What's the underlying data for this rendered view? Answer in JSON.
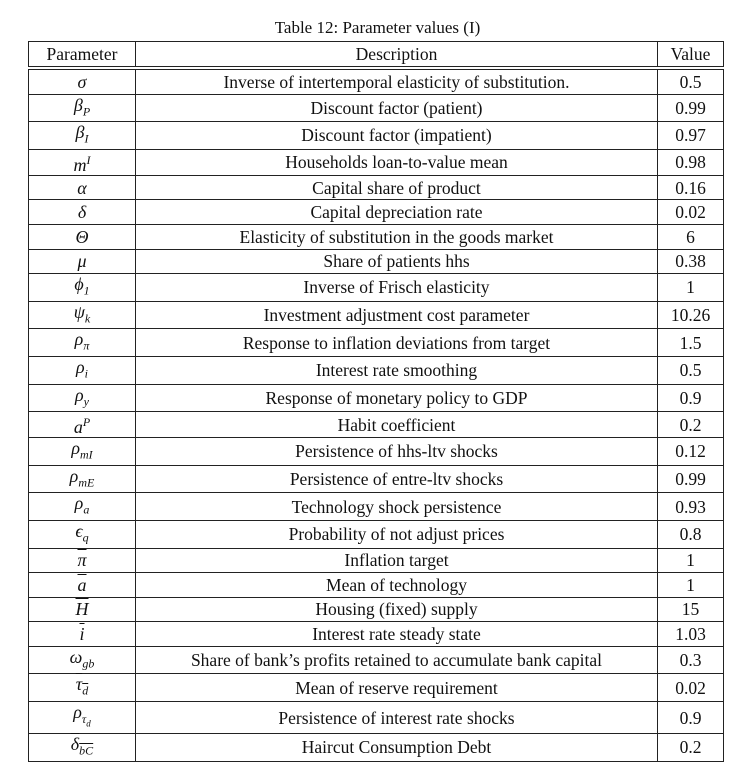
{
  "caption": "Table 12: Parameter values (I)",
  "headers": {
    "parameter": "Parameter",
    "description": "Description",
    "value": "Value"
  },
  "rows": [
    {
      "base": "σ",
      "description": "Inverse of intertemporal elasticity of substitution.",
      "value": "0.5"
    },
    {
      "base": "β",
      "sub": "P",
      "description": "Discount factor (patient)",
      "value": "0.99"
    },
    {
      "base": "β",
      "sub": "I",
      "description": "Discount factor (impatient)",
      "value": "0.97"
    },
    {
      "base": "m",
      "sup": "I",
      "description": "Households loan-to-value mean",
      "value": "0.98"
    },
    {
      "base": "α",
      "description": "Capital share of product",
      "value": "0.16"
    },
    {
      "base": "δ",
      "description": "Capital depreciation rate",
      "value": "0.02"
    },
    {
      "base": "Θ",
      "description": "Elasticity of substitution in the goods market",
      "value": "6"
    },
    {
      "base": "μ",
      "description": "Share of patients hhs",
      "value": "0.38"
    },
    {
      "base": "ϕ",
      "sub": "1",
      "description": "Inverse of Frisch elasticity",
      "value": "1"
    },
    {
      "base": "ψ",
      "sub": "k",
      "description": "Investment adjustment cost parameter",
      "value": "10.26"
    },
    {
      "base": "ρ",
      "sub": "π",
      "description": "Response to inflation deviations from target",
      "value": "1.5"
    },
    {
      "base": "ρ",
      "sub": "i",
      "description": "Interest rate smoothing",
      "value": "0.5"
    },
    {
      "base": "ρ",
      "sub": "y",
      "description": "Response of monetary policy to GDP",
      "value": "0.9"
    },
    {
      "base": "a",
      "sup": "P",
      "description": "Habit coefficient",
      "value": "0.2"
    },
    {
      "base": "ρ",
      "sub": "mI",
      "description": "Persistence of hhs-ltv shocks",
      "value": "0.12"
    },
    {
      "base": "ρ",
      "sub": "mE",
      "description": "Persistence of entre-ltv shocks",
      "value": "0.99"
    },
    {
      "base": "ρ",
      "sub": "a",
      "description": "Technology shock persistence",
      "value": "0.93"
    },
    {
      "base": "ϵ",
      "sub": "q",
      "description": "Probability of not adjust prices",
      "value": "0.8"
    },
    {
      "base": "π",
      "overline": true,
      "description": "Inflation target",
      "value": "1"
    },
    {
      "base": "a",
      "overline": true,
      "description": "Mean of technology",
      "value": "1"
    },
    {
      "base": "H",
      "overline": true,
      "description": "Housing (fixed) supply",
      "value": "15"
    },
    {
      "base": "i",
      "overline": true,
      "description": "Interest rate steady state",
      "value": "1.03"
    },
    {
      "base": "ω",
      "sub": "gb",
      "description": "Share of bank’s profits retained to accumulate bank capital",
      "value": "0.3"
    },
    {
      "base": "τ",
      "sub": "d",
      "overline": true,
      "description": "Mean of reserve requirement",
      "value": "0.02"
    },
    {
      "base": "ρ",
      "sub": "τ",
      "subsub": "d",
      "description": "Persistence of interest rate shocks",
      "value": "0.9"
    },
    {
      "base": "δ",
      "sub": "bC",
      "overline": true,
      "description": "Haircut Consumption Debt",
      "value": "0.2"
    }
  ]
}
